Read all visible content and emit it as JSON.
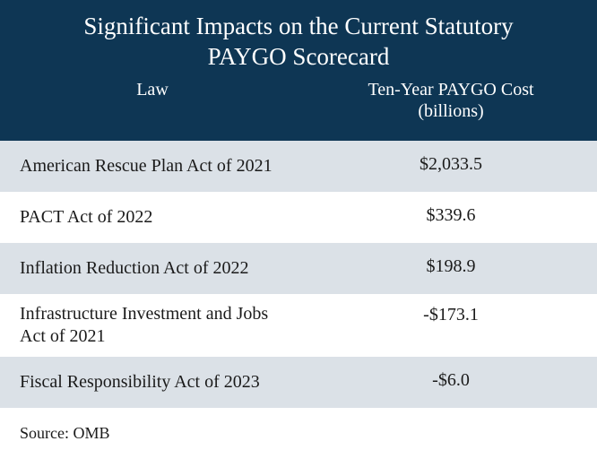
{
  "table": {
    "title_line1": "Significant Impacts on the Current Statutory",
    "title_line2": "PAYGO Scorecard",
    "col_law": "Law",
    "col_cost_line1": "Ten-Year PAYGO Cost",
    "col_cost_line2": "(billions)",
    "rows": [
      {
        "law": "American Rescue Plan Act of 2021",
        "cost": "$2,033.5"
      },
      {
        "law": "PACT Act of 2022",
        "cost": "$339.6"
      },
      {
        "law": "Inflation Reduction Act of 2022",
        "cost": "$198.9"
      },
      {
        "law_line1": "Infrastructure Investment and Jobs",
        "law_line2": "Act of 2021",
        "cost": "-$173.1"
      },
      {
        "law": "Fiscal Responsibility Act of 2023",
        "cost": "-$6.0"
      }
    ],
    "source": "Source: OMB"
  },
  "colors": {
    "header_bg": "#0e3654",
    "row_shade": "#dbe1e7"
  }
}
